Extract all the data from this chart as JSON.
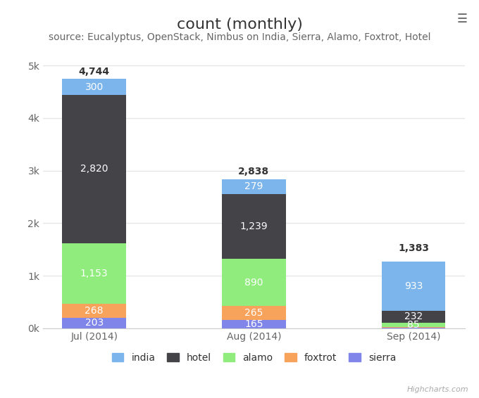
{
  "title": "count (monthly)",
  "subtitle": "source: Eucalyptus, OpenStack, Nimbus on India, Sierra, Alamo, Foxtrot, Hotel",
  "categories": [
    "Jul (2014)",
    "Aug (2014)",
    "Sep (2014)"
  ],
  "series": {
    "sierra": [
      203,
      165,
      15
    ],
    "foxtrot": [
      268,
      265,
      8
    ],
    "alamo": [
      1153,
      890,
      85
    ],
    "hotel": [
      2820,
      1239,
      232
    ],
    "india": [
      300,
      279,
      933
    ]
  },
  "totals": [
    4744,
    2838,
    1383
  ],
  "colors": {
    "india": "#7cb5ec",
    "hotel": "#434348",
    "alamo": "#90ed7d",
    "foxtrot": "#f7a35c",
    "sierra": "#8085e9"
  },
  "stack_order": [
    "sierra",
    "foxtrot",
    "alamo",
    "hotel",
    "india"
  ],
  "legend_order": [
    "india",
    "hotel",
    "alamo",
    "foxtrot",
    "sierra"
  ],
  "ylim": [
    0,
    5300
  ],
  "yticks": [
    0,
    1000,
    2000,
    3000,
    4000,
    5000
  ],
  "ytick_labels": [
    "0k",
    "1k",
    "2k",
    "3k",
    "4k",
    "5k"
  ],
  "background_color": "#ffffff",
  "plot_bg_color": "#ffffff",
  "grid_color": "#e6e6e6",
  "bar_width": 0.4,
  "title_fontsize": 16,
  "subtitle_fontsize": 10,
  "label_fontsize": 10,
  "tick_fontsize": 10
}
